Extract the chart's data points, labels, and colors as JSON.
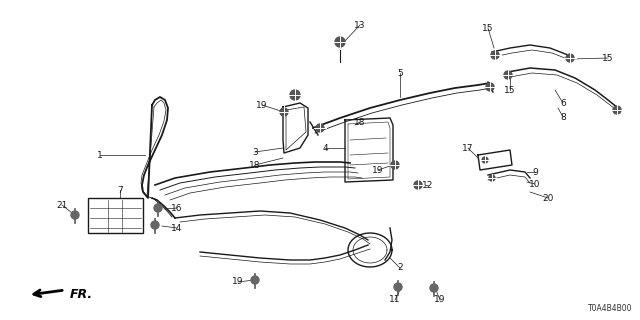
{
  "bg_color": "#ffffff",
  "fig_width": 6.4,
  "fig_height": 3.2,
  "dpi": 100,
  "diagram_code": "T0A4B4B00",
  "fr_label": "FR.",
  "line_color": "#1a1a1a",
  "label_color": "#1a1a1a",
  "font_size": 6.5,
  "lw": 1.0
}
